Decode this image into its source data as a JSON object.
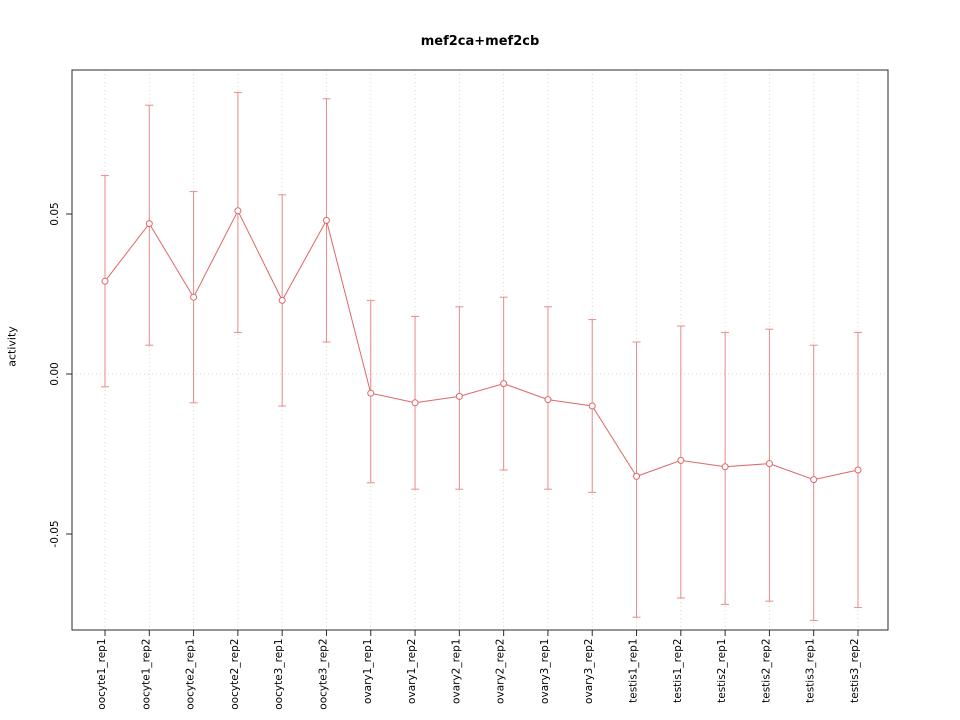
{
  "chart_data": {
    "type": "line",
    "title": "mef2ca+mef2cb",
    "xlabel": "",
    "ylabel": "activity",
    "ylim": [
      -0.08,
      0.095
    ],
    "grid": "dotted vertical gridline per category, dotted horizontal line at 0",
    "legend": "none",
    "yticks": [
      {
        "value": 0.05,
        "label": "0.05"
      },
      {
        "value": 0.0,
        "label": "0.00"
      },
      {
        "value": -0.05,
        "label": "-0.05"
      }
    ],
    "categories": [
      "oocyte1_rep1",
      "oocyte1_rep2",
      "oocyte2_rep1",
      "oocyte2_rep2",
      "oocyte3_rep1",
      "oocyte3_rep2",
      "ovary1_rep1",
      "ovary1_rep2",
      "ovary2_rep1",
      "ovary2_rep2",
      "ovary3_rep1",
      "ovary3_rep2",
      "testis1_rep1",
      "testis1_rep2",
      "testis2_rep1",
      "testis2_rep2",
      "testis3_rep1",
      "testis3_rep2"
    ],
    "series": [
      {
        "name": "activity",
        "marker": "open-circle",
        "values": [
          0.029,
          0.047,
          0.024,
          0.051,
          0.023,
          0.048,
          -0.006,
          -0.009,
          -0.007,
          -0.003,
          -0.008,
          -0.01,
          -0.032,
          -0.027,
          -0.029,
          -0.028,
          -0.033,
          -0.03
        ],
        "upper": [
          0.062,
          0.084,
          0.057,
          0.088,
          0.056,
          0.086,
          0.023,
          0.018,
          0.021,
          0.024,
          0.021,
          0.017,
          0.01,
          0.015,
          0.013,
          0.014,
          0.009,
          0.013
        ],
        "lower": [
          -0.004,
          0.009,
          -0.009,
          0.013,
          -0.01,
          0.01,
          -0.034,
          -0.036,
          -0.036,
          -0.03,
          -0.036,
          -0.037,
          -0.076,
          -0.07,
          -0.072,
          -0.071,
          -0.077,
          -0.073
        ]
      }
    ],
    "colors": {
      "line": "#e06666",
      "error_bar": "#e98a8a",
      "grid": "#d6d6d6",
      "frame": "#2b2b2b",
      "text": "#000000"
    }
  }
}
